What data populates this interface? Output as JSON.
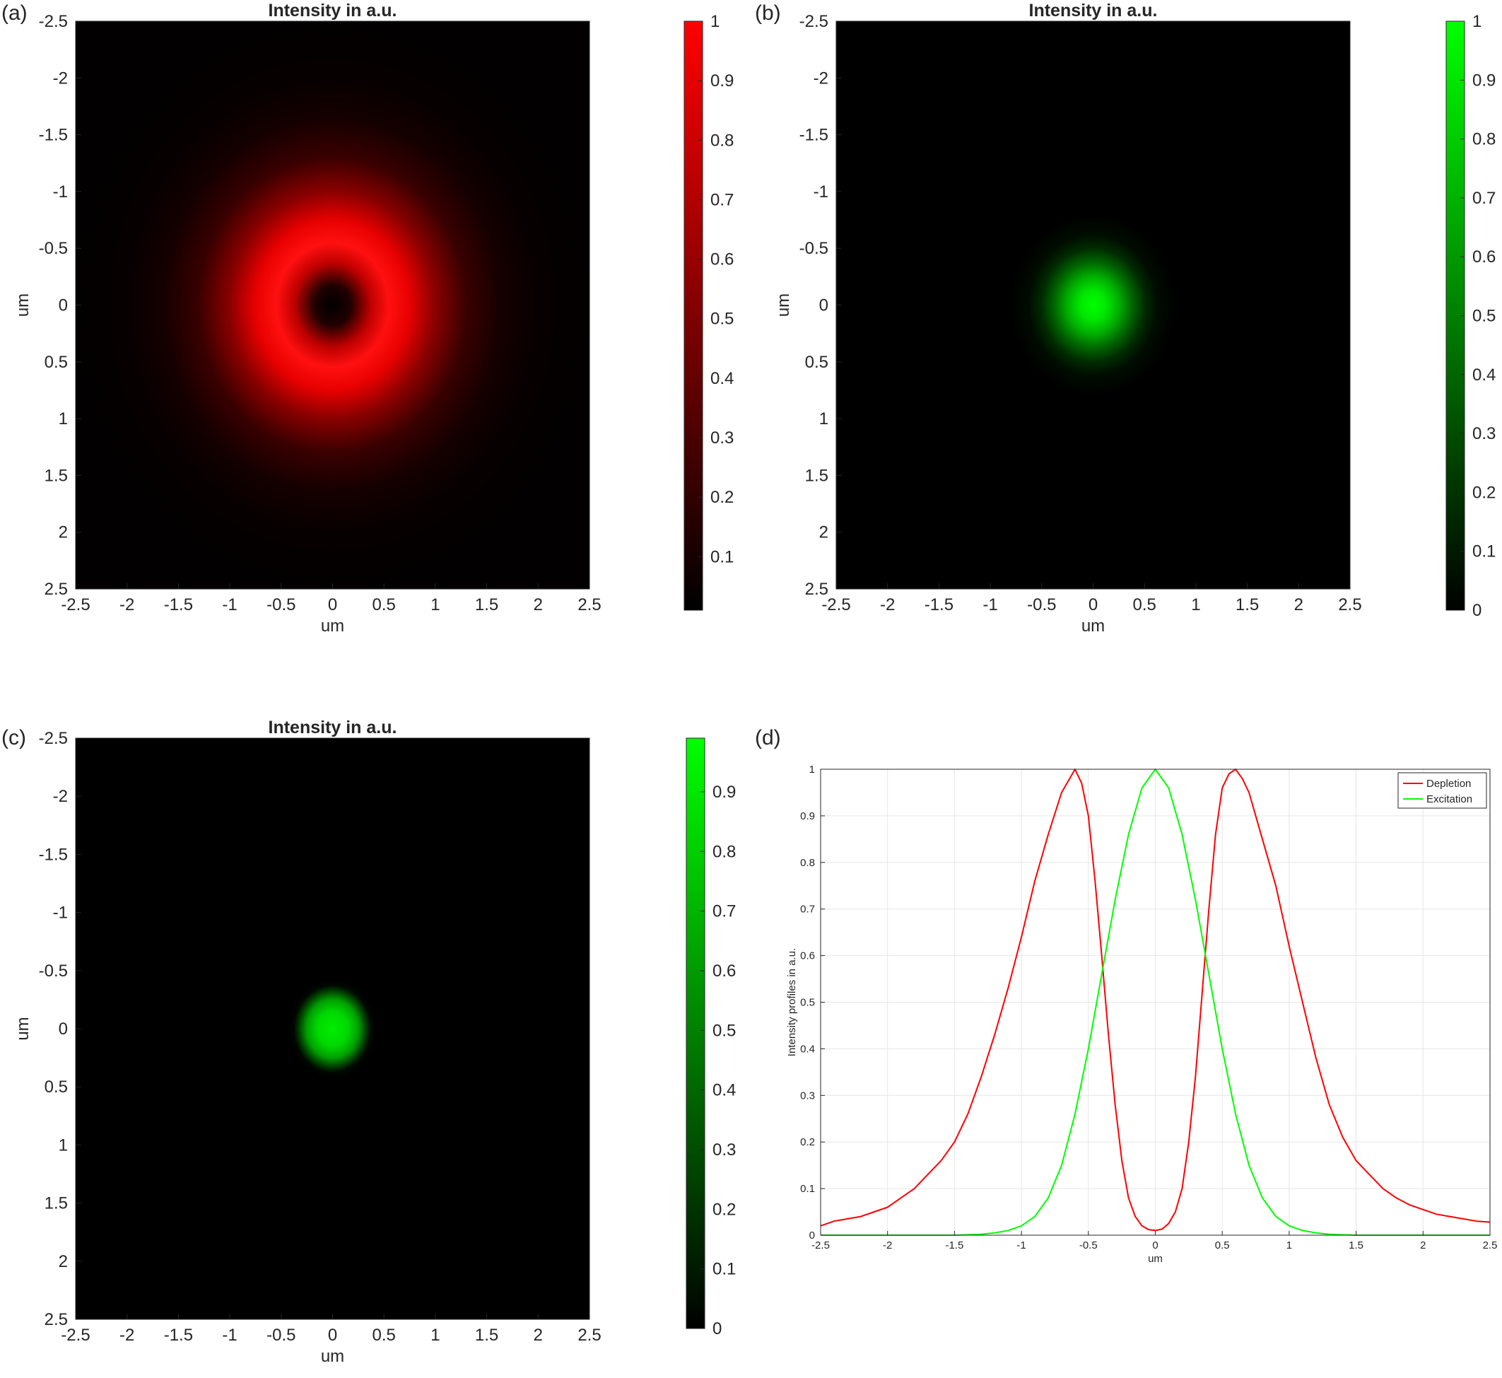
{
  "chart_data": [
    {
      "panel_label": "(a)",
      "type": "heatmap",
      "title": "Intensity in a.u.",
      "xlabel": "um",
      "ylabel": "um",
      "xlim": [
        -2.5,
        2.5
      ],
      "ylim": [
        -2.5,
        2.5
      ],
      "y_reversed": true,
      "x_ticks": [
        "-2.5",
        "-2",
        "-1.5",
        "-1",
        "-0.5",
        "0",
        "0.5",
        "1",
        "1.5",
        "2",
        "2.5"
      ],
      "y_ticks": [
        "-2.5",
        "-2",
        "-1.5",
        "-1",
        "-0.5",
        "0",
        "0.5",
        "1",
        "1.5",
        "2",
        "2.5"
      ],
      "colorbar_ticks": [
        "0.1",
        "0.2",
        "0.3",
        "0.4",
        "0.5",
        "0.6",
        "0.7",
        "0.8",
        "0.9",
        "1"
      ],
      "colorbar_range": [
        0.01,
        1
      ],
      "colormap": [
        "#000000",
        "#ff0000"
      ],
      "pattern": "donut",
      "peak_radius_um": 0.6
    },
    {
      "panel_label": "(b)",
      "type": "heatmap",
      "title": "Intensity in a.u.",
      "xlabel": "um",
      "ylabel": "um",
      "xlim": [
        -2.5,
        2.5
      ],
      "ylim": [
        -2.5,
        2.5
      ],
      "y_reversed": true,
      "x_ticks": [
        "-2.5",
        "-2",
        "-1.5",
        "-1",
        "-0.5",
        "0",
        "0.5",
        "1",
        "1.5",
        "2",
        "2.5"
      ],
      "y_ticks": [
        "-2.5",
        "-2",
        "-1.5",
        "-1",
        "-0.5",
        "0",
        "0.5",
        "1",
        "1.5",
        "2",
        "2.5"
      ],
      "colorbar_ticks": [
        "0",
        "0.1",
        "0.2",
        "0.3",
        "0.4",
        "0.5",
        "0.6",
        "0.7",
        "0.8",
        "0.9",
        "1"
      ],
      "colorbar_range": [
        0,
        1
      ],
      "colormap": [
        "#000000",
        "#00ff00"
      ],
      "pattern": "gaussian",
      "fwhm_um": 0.75
    },
    {
      "panel_label": "(c)",
      "type": "heatmap",
      "title": "Intensity in a.u.",
      "xlabel": "um",
      "ylabel": "um",
      "xlim": [
        -2.5,
        2.5
      ],
      "ylim": [
        -2.5,
        2.5
      ],
      "y_reversed": true,
      "x_ticks": [
        "-2.5",
        "-2",
        "-1.5",
        "-1",
        "-0.5",
        "0",
        "0.5",
        "1",
        "1.5",
        "2",
        "2.5"
      ],
      "y_ticks": [
        "-2.5",
        "-2",
        "-1.5",
        "-1",
        "-0.5",
        "0",
        "0.5",
        "1",
        "1.5",
        "2",
        "2.5"
      ],
      "colorbar_ticks": [
        "0",
        "0.1",
        "0.2",
        "0.3",
        "0.4",
        "0.5",
        "0.6",
        "0.7",
        "0.8",
        "0.9"
      ],
      "colorbar_range": [
        0,
        0.99
      ],
      "colormap": [
        "#000000",
        "#00ff00"
      ],
      "pattern": "gaussian",
      "fwhm_um": 0.52
    },
    {
      "panel_label": "(d)",
      "type": "line",
      "title": "",
      "xlabel": "um",
      "ylabel": "Intensity profiles in a.u.",
      "xlim": [
        -2.5,
        2.5
      ],
      "ylim": [
        0,
        1
      ],
      "grid": true,
      "legend_position": "top-right",
      "x_ticks": [
        "-2.5",
        "-2",
        "-1.5",
        "-1",
        "-0.5",
        "0",
        "0.5",
        "1",
        "1.5",
        "2",
        "2.5"
      ],
      "y_ticks": [
        "0",
        "0.1",
        "0.2",
        "0.3",
        "0.4",
        "0.5",
        "0.6",
        "0.7",
        "0.8",
        "0.9",
        "1"
      ],
      "series": [
        {
          "name": "Depletion",
          "color": "#ff0000",
          "x": [
            -2.5,
            -2.4,
            -2.3,
            -2.2,
            -2.1,
            -2.0,
            -1.9,
            -1.8,
            -1.7,
            -1.6,
            -1.5,
            -1.4,
            -1.3,
            -1.2,
            -1.1,
            -1.0,
            -0.9,
            -0.8,
            -0.7,
            -0.65,
            -0.6,
            -0.55,
            -0.5,
            -0.45,
            -0.4,
            -0.35,
            -0.3,
            -0.25,
            -0.2,
            -0.15,
            -0.1,
            -0.05,
            0.0,
            0.05,
            0.1,
            0.15,
            0.2,
            0.25,
            0.3,
            0.35,
            0.4,
            0.45,
            0.5,
            0.55,
            0.6,
            0.65,
            0.7,
            0.8,
            0.9,
            1.0,
            1.1,
            1.2,
            1.3,
            1.4,
            1.5,
            1.6,
            1.7,
            1.8,
            1.9,
            2.0,
            2.1,
            2.2,
            2.3,
            2.4,
            2.5
          ],
          "y": [
            0.02,
            0.03,
            0.035,
            0.04,
            0.05,
            0.06,
            0.08,
            0.1,
            0.13,
            0.16,
            0.2,
            0.26,
            0.34,
            0.43,
            0.53,
            0.64,
            0.76,
            0.86,
            0.95,
            0.975,
            1.0,
            0.97,
            0.9,
            0.76,
            0.6,
            0.43,
            0.28,
            0.16,
            0.08,
            0.04,
            0.02,
            0.012,
            0.01,
            0.013,
            0.025,
            0.05,
            0.1,
            0.2,
            0.34,
            0.52,
            0.7,
            0.86,
            0.96,
            0.99,
            1.0,
            0.98,
            0.95,
            0.85,
            0.75,
            0.62,
            0.5,
            0.38,
            0.28,
            0.21,
            0.16,
            0.13,
            0.1,
            0.08,
            0.065,
            0.055,
            0.045,
            0.04,
            0.035,
            0.03,
            0.028
          ]
        },
        {
          "name": "Excitation",
          "color": "#00ff00",
          "x": [
            -2.5,
            -2.0,
            -1.5,
            -1.3,
            -1.2,
            -1.1,
            -1.0,
            -0.9,
            -0.8,
            -0.7,
            -0.6,
            -0.5,
            -0.4,
            -0.3,
            -0.2,
            -0.1,
            0.0,
            0.1,
            0.2,
            0.3,
            0.4,
            0.5,
            0.6,
            0.7,
            0.8,
            0.9,
            1.0,
            1.1,
            1.2,
            1.3,
            1.5,
            2.0,
            2.5
          ],
          "y": [
            0.0,
            0.0,
            0.0,
            0.002,
            0.005,
            0.01,
            0.02,
            0.04,
            0.08,
            0.15,
            0.26,
            0.4,
            0.56,
            0.72,
            0.86,
            0.96,
            1.0,
            0.96,
            0.86,
            0.72,
            0.56,
            0.4,
            0.26,
            0.15,
            0.08,
            0.04,
            0.02,
            0.01,
            0.005,
            0.002,
            0.0,
            0.0,
            0.0
          ]
        }
      ]
    }
  ]
}
